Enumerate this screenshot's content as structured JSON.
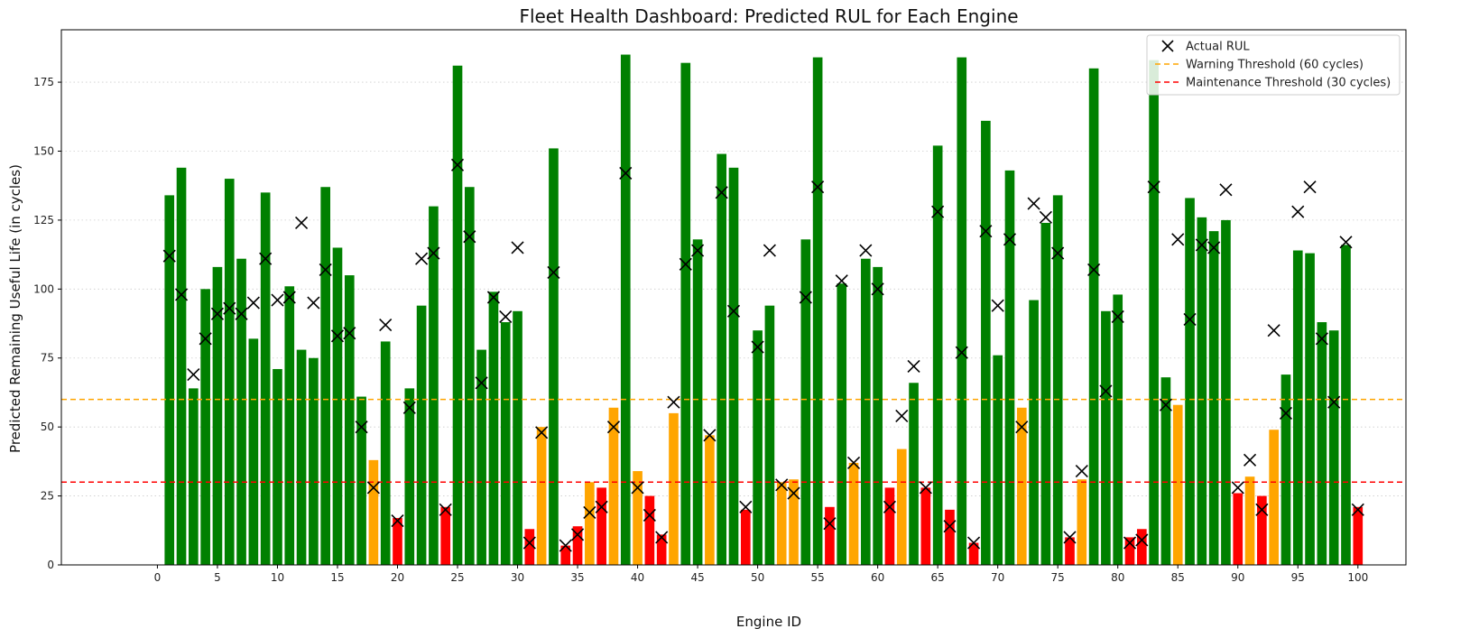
{
  "chart_data": {
    "type": "bar",
    "title": "Fleet Health Dashboard: Predicted RUL for Each Engine",
    "xlabel": "Engine ID",
    "ylabel": "Predicted Remaining Useful Life (in cycles)",
    "xlim": [
      -8,
      104
    ],
    "ylim": [
      0,
      194
    ],
    "xticks": [
      0,
      5,
      10,
      15,
      20,
      25,
      30,
      35,
      40,
      45,
      50,
      55,
      60,
      65,
      70,
      75,
      80,
      85,
      90,
      95,
      100
    ],
    "yticks": [
      0,
      25,
      50,
      75,
      100,
      125,
      150,
      175
    ],
    "grid": "horizontal dotted",
    "legend_position": "top-right",
    "colors": {
      "healthy": "#008000",
      "warning": "#ffa500",
      "critical": "#ff0000",
      "warning_line": "#ffa500",
      "maintenance_line": "#ff0000",
      "marker": "#000000"
    },
    "thresholds": [
      {
        "name": "Warning Threshold (60 cycles)",
        "value": 60
      },
      {
        "name": "Maintenance Threshold (30 cycles)",
        "value": 30
      }
    ],
    "legend": [
      {
        "label": "Actual RUL",
        "kind": "marker"
      },
      {
        "label": "Warning Threshold (60 cycles)",
        "kind": "warning"
      },
      {
        "label": "Maintenance Threshold (30 cycles)",
        "kind": "maintenance"
      }
    ],
    "categories": [
      1,
      2,
      3,
      4,
      5,
      6,
      7,
      8,
      9,
      10,
      11,
      12,
      13,
      14,
      15,
      16,
      17,
      18,
      19,
      20,
      21,
      22,
      23,
      24,
      25,
      26,
      27,
      28,
      29,
      30,
      31,
      32,
      33,
      34,
      35,
      36,
      37,
      38,
      39,
      40,
      41,
      42,
      43,
      44,
      45,
      46,
      47,
      48,
      49,
      50,
      51,
      52,
      53,
      54,
      55,
      56,
      57,
      58,
      59,
      60,
      61,
      62,
      63,
      64,
      65,
      66,
      67,
      68,
      69,
      70,
      71,
      72,
      73,
      74,
      75,
      76,
      77,
      78,
      79,
      80,
      81,
      82,
      83,
      84,
      85,
      86,
      87,
      88,
      89,
      90,
      91,
      92,
      93,
      94,
      95,
      96,
      97,
      98,
      99,
      100
    ],
    "series": [
      {
        "name": "Predicted RUL",
        "values": [
          134,
          144,
          64,
          100,
          108,
          140,
          111,
          82,
          135,
          71,
          101,
          78,
          75,
          137,
          115,
          105,
          61,
          38,
          81,
          17,
          64,
          94,
          130,
          21,
          181,
          137,
          78,
          99,
          88,
          92,
          13,
          50,
          151,
          7,
          14,
          30,
          28,
          57,
          185,
          34,
          25,
          11,
          55,
          182,
          118,
          47,
          149,
          144,
          20,
          85,
          94,
          30,
          31,
          118,
          184,
          21,
          102,
          37,
          111,
          108,
          28,
          42,
          66,
          28,
          152,
          20,
          184,
          8,
          161,
          76,
          143,
          57,
          96,
          124,
          134,
          10,
          31,
          180,
          92,
          98,
          10,
          13,
          183,
          68,
          58,
          133,
          126,
          121,
          125,
          26,
          32,
          25,
          49,
          69,
          114,
          113,
          88,
          85,
          116,
          21
        ]
      },
      {
        "name": "Actual RUL",
        "values": [
          112,
          98,
          69,
          82,
          91,
          93,
          91,
          95,
          111,
          96,
          97,
          124,
          95,
          107,
          83,
          84,
          50,
          28,
          87,
          16,
          57,
          111,
          113,
          20,
          145,
          119,
          66,
          97,
          90,
          115,
          8,
          48,
          106,
          7,
          11,
          19,
          21,
          50,
          142,
          28,
          18,
          10,
          59,
          109,
          114,
          47,
          135,
          92,
          21,
          79,
          114,
          29,
          26,
          97,
          137,
          15,
          103,
          37,
          114,
          100,
          21,
          54,
          72,
          28,
          128,
          14,
          77,
          8,
          121,
          94,
          118,
          50,
          131,
          126,
          113,
          10,
          34,
          107,
          63,
          90,
          8,
          9,
          137,
          58,
          118,
          89,
          116,
          115,
          136,
          28,
          38,
          20,
          85,
          55,
          128,
          137,
          82,
          59,
          117,
          20
        ]
      }
    ]
  }
}
